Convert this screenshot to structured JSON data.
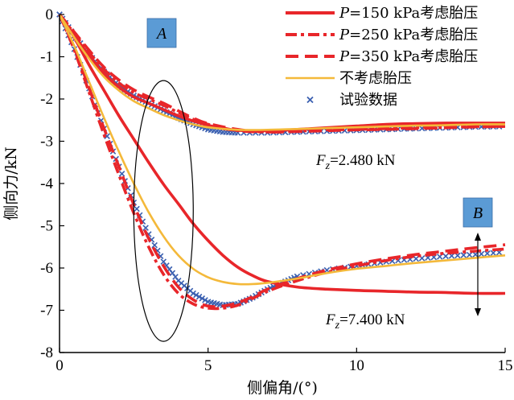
{
  "chart_data": {
    "type": "line",
    "xlabel": "侧偏角/(°)",
    "ylabel": "侧向力/kN",
    "xlim": [
      0,
      15
    ],
    "ylim": [
      -8,
      0
    ],
    "xticks": [
      0,
      5,
      10,
      15
    ],
    "yticks": [
      0,
      -1,
      -2,
      -3,
      -4,
      -5,
      -6,
      -7,
      -8
    ],
    "legend_position": "top-right",
    "series": [
      {
        "name": "P=150 kPa考虑胎压",
        "style": "solid",
        "color": "#e8262a",
        "group": "Fz=2.480 kN",
        "x": [
          0,
          0.5,
          1,
          1.5,
          2,
          2.5,
          3,
          3.5,
          4,
          4.5,
          5,
          5.5,
          6,
          7,
          8,
          9,
          10,
          11,
          12,
          13,
          14,
          15
        ],
        "y": [
          0,
          -0.5,
          -0.98,
          -1.4,
          -1.72,
          -1.95,
          -2.1,
          -2.25,
          -2.4,
          -2.52,
          -2.62,
          -2.7,
          -2.74,
          -2.75,
          -2.72,
          -2.68,
          -2.64,
          -2.6,
          -2.58,
          -2.57,
          -2.57,
          -2.57
        ]
      },
      {
        "name": "P=150 kPa考虑胎压",
        "style": "solid",
        "color": "#e8262a",
        "group": "Fz=7.400 kN",
        "x": [
          0,
          0.5,
          1,
          1.5,
          2,
          2.5,
          3,
          3.5,
          4,
          4.5,
          5,
          5.5,
          6,
          6.5,
          7,
          8,
          9,
          10,
          11,
          12,
          13,
          14,
          15
        ],
        "y": [
          0,
          -0.55,
          -1.2,
          -1.8,
          -2.4,
          -2.95,
          -3.5,
          -4.02,
          -4.48,
          -4.95,
          -5.35,
          -5.7,
          -5.98,
          -6.18,
          -6.32,
          -6.45,
          -6.5,
          -6.53,
          -6.55,
          -6.57,
          -6.58,
          -6.6,
          -6.6
        ]
      },
      {
        "name": "P=250 kPa考虑胎压",
        "style": "dashdot",
        "color": "#e8262a",
        "group": "Fz=2.480 kN",
        "x": [
          0,
          0.5,
          1,
          1.5,
          2,
          2.5,
          3,
          3.5,
          4,
          4.5,
          5,
          6,
          7,
          8,
          9,
          10,
          11,
          12,
          13,
          14,
          15
        ],
        "y": [
          0,
          -0.45,
          -0.9,
          -1.3,
          -1.62,
          -1.85,
          -2.0,
          -2.15,
          -2.32,
          -2.48,
          -2.6,
          -2.75,
          -2.78,
          -2.76,
          -2.73,
          -2.72,
          -2.7,
          -2.68,
          -2.67,
          -2.65,
          -2.65
        ]
      },
      {
        "name": "P=250 kPa考虑胎压",
        "style": "dashdot",
        "color": "#e8262a",
        "group": "Fz=7.400 kN",
        "x": [
          0,
          0.5,
          1,
          1.5,
          2,
          2.5,
          3,
          3.5,
          4,
          4.5,
          5,
          5.5,
          6,
          6.5,
          7,
          8,
          9,
          10,
          11,
          12,
          13,
          14,
          15
        ],
        "y": [
          0,
          -0.85,
          -1.85,
          -2.85,
          -3.8,
          -4.7,
          -5.5,
          -6.15,
          -6.6,
          -6.85,
          -6.95,
          -6.95,
          -6.88,
          -6.72,
          -6.55,
          -6.3,
          -6.1,
          -5.95,
          -5.82,
          -5.72,
          -5.65,
          -5.6,
          -5.55
        ]
      },
      {
        "name": "P=350 kPa考虑胎压",
        "style": "dashed",
        "color": "#e8262a",
        "group": "Fz=2.480 kN",
        "x": [
          0,
          0.5,
          1,
          1.5,
          2,
          2.5,
          3,
          3.5,
          4,
          4.5,
          5,
          6,
          7,
          8,
          9,
          10,
          11,
          12,
          13,
          14,
          15
        ],
        "y": [
          0,
          -0.42,
          -0.85,
          -1.25,
          -1.55,
          -1.78,
          -1.95,
          -2.1,
          -2.28,
          -2.45,
          -2.58,
          -2.72,
          -2.78,
          -2.77,
          -2.75,
          -2.73,
          -2.72,
          -2.7,
          -2.68,
          -2.66,
          -2.65
        ]
      },
      {
        "name": "P=350 kPa考虑胎压",
        "style": "dashed",
        "color": "#e8262a",
        "group": "Fz=7.400 kN",
        "x": [
          0,
          0.5,
          1,
          1.5,
          2,
          2.5,
          3,
          3.5,
          4,
          4.5,
          5,
          5.5,
          6,
          6.5,
          7,
          8,
          9,
          10,
          11,
          12,
          13,
          14,
          15
        ],
        "y": [
          0,
          -0.8,
          -1.75,
          -2.7,
          -3.6,
          -4.5,
          -5.3,
          -5.95,
          -6.45,
          -6.75,
          -6.9,
          -6.9,
          -6.82,
          -6.68,
          -6.5,
          -6.25,
          -6.05,
          -5.9,
          -5.78,
          -5.68,
          -5.6,
          -5.52,
          -5.45
        ]
      },
      {
        "name": "不考虑胎压",
        "style": "solid",
        "color": "#f4b93a",
        "group": "Fz=2.480 kN",
        "x": [
          0,
          0.5,
          1,
          1.5,
          2,
          2.5,
          3,
          3.5,
          4,
          4.5,
          5,
          6,
          7,
          8,
          9,
          10,
          11,
          12,
          13,
          14,
          15
        ],
        "y": [
          0,
          -0.55,
          -1.05,
          -1.48,
          -1.8,
          -2.05,
          -2.22,
          -2.38,
          -2.5,
          -2.6,
          -2.67,
          -2.73,
          -2.73,
          -2.71,
          -2.69,
          -2.67,
          -2.65,
          -2.63,
          -2.62,
          -2.6,
          -2.6
        ]
      },
      {
        "name": "不考虑胎压",
        "style": "solid",
        "color": "#f4b93a",
        "group": "Fz=7.400 kN",
        "x": [
          0,
          0.5,
          1,
          1.5,
          2,
          2.5,
          3,
          3.5,
          4,
          4.5,
          5,
          5.5,
          6,
          6.5,
          7,
          8,
          9,
          10,
          11,
          12,
          13,
          14,
          15
        ],
        "y": [
          0,
          -0.75,
          -1.6,
          -2.45,
          -3.25,
          -4.0,
          -4.68,
          -5.25,
          -5.7,
          -6.02,
          -6.22,
          -6.33,
          -6.38,
          -6.38,
          -6.35,
          -6.25,
          -6.12,
          -6.02,
          -5.95,
          -5.88,
          -5.82,
          -5.76,
          -5.7
        ]
      },
      {
        "name": "试验数据",
        "style": "marker",
        "color": "#3a5fb0",
        "group": "Fz=2.480 kN",
        "x": [
          0,
          0.5,
          1,
          1.5,
          2,
          2.5,
          3,
          3.5,
          4,
          4.5,
          5,
          5.5,
          6,
          7,
          8,
          9,
          10,
          11,
          12,
          13,
          14,
          15
        ],
        "y": [
          0,
          -0.5,
          -0.95,
          -1.35,
          -1.68,
          -1.92,
          -2.1,
          -2.28,
          -2.45,
          -2.6,
          -2.72,
          -2.78,
          -2.8,
          -2.8,
          -2.78,
          -2.76,
          -2.74,
          -2.72,
          -2.7,
          -2.68,
          -2.66,
          -2.65
        ]
      },
      {
        "name": "试验数据",
        "style": "marker",
        "color": "#3a5fb0",
        "group": "Fz=7.400 kN",
        "x": [
          0,
          0.5,
          1,
          1.5,
          2,
          2.5,
          3,
          3.5,
          4,
          4.5,
          5,
          5.5,
          6,
          6.5,
          7,
          7.5,
          8,
          9,
          10,
          11,
          12,
          13,
          14,
          15
        ],
        "y": [
          0,
          -0.82,
          -1.75,
          -2.7,
          -3.6,
          -4.45,
          -5.2,
          -5.85,
          -6.3,
          -6.6,
          -6.8,
          -6.88,
          -6.85,
          -6.7,
          -6.5,
          -6.35,
          -6.2,
          -6.05,
          -5.95,
          -5.85,
          -5.78,
          -5.72,
          -5.68,
          -5.62
        ]
      }
    ],
    "legend": [
      {
        "label": "P=150 kPa考虑胎压",
        "style": "solid",
        "color": "#e8262a"
      },
      {
        "label": "P=250 kPa考虑胎压",
        "style": "dashdot",
        "color": "#e8262a"
      },
      {
        "label": "P=350 kPa考虑胎压",
        "style": "dashed",
        "color": "#e8262a"
      },
      {
        "label": "不考虑胎压",
        "style": "solid",
        "color": "#f4b93a"
      },
      {
        "label": "试验数据",
        "style": "marker",
        "color": "#3a5fb0"
      }
    ],
    "annotations": {
      "box_a": "A",
      "box_b": "B",
      "fz_low": "Fz=2.480 kN",
      "fz_high": "Fz=7.400 kN"
    },
    "box_color": "#5b9bd5",
    "grid": false
  }
}
